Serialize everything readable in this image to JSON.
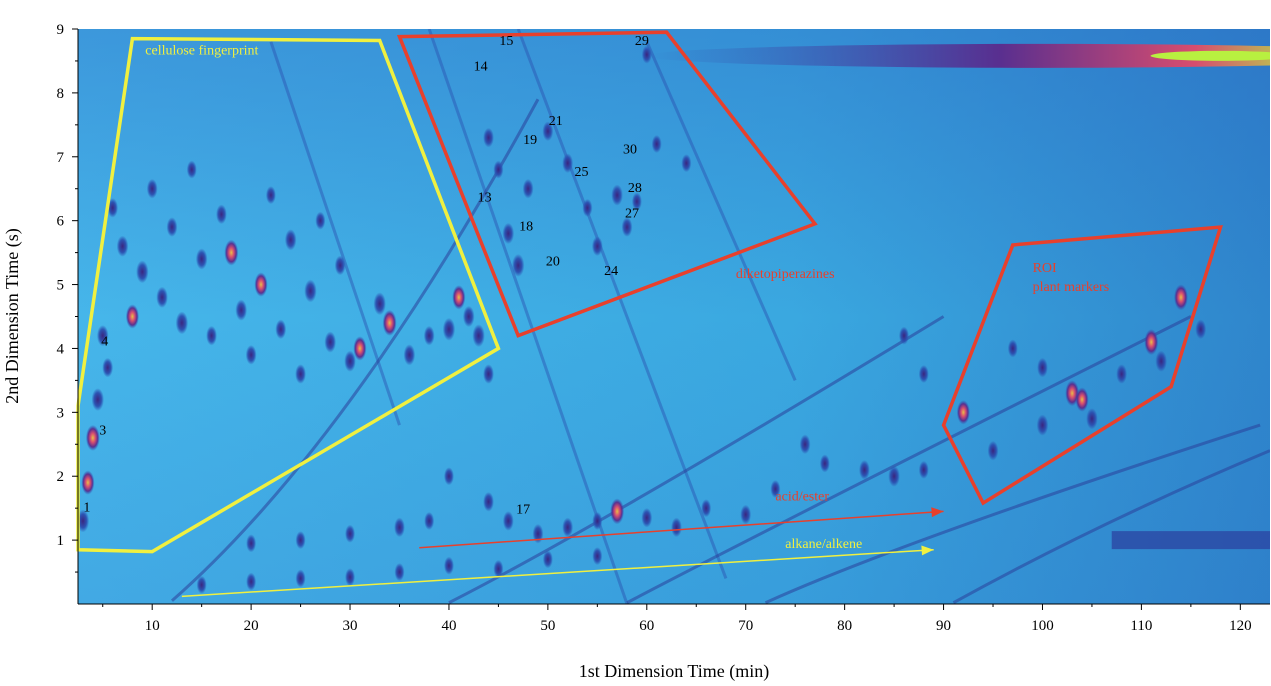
{
  "chart_data": {
    "type": "heatmap",
    "subtype": "GCxGC contour plot",
    "title": "",
    "xlabel": "1st Dimension Time (min)",
    "ylabel": "2nd Dimension Time (s)",
    "xlim": [
      2.5,
      123
    ],
    "ylim": [
      0,
      9
    ],
    "xticks": [
      10,
      20,
      30,
      40,
      50,
      60,
      70,
      80,
      90,
      100,
      110,
      120
    ],
    "yticks": [
      1,
      2,
      3,
      4,
      5,
      6,
      7,
      8,
      9
    ],
    "grid": false,
    "colors": {
      "background": "#3fb0e6",
      "band": "#5fc8f0",
      "low": "#2b4fb0",
      "mid": "#5b2a8c",
      "high": "#e04a6a",
      "peak": "#f0c040",
      "top": "#b8f040",
      "yellow_annotation": "#f0f040",
      "red_annotation": "#e8402c"
    },
    "regions": [
      {
        "label": "cellulose fingerprint",
        "color": "#f0f040",
        "points": [
          [
            2.5,
            0.85
          ],
          [
            10,
            0.82
          ],
          [
            45,
            4.0
          ],
          [
            33,
            8.82
          ],
          [
            8,
            8.85
          ],
          [
            2.5,
            3.1
          ]
        ]
      },
      {
        "label": "diketopiperazines",
        "color": "#e8402c",
        "points": [
          [
            35,
            8.88
          ],
          [
            62,
            8.95
          ],
          [
            77,
            5.95
          ],
          [
            47,
            4.2
          ]
        ]
      },
      {
        "label": "ROI\nplant markers",
        "color": "#e8402c",
        "points": [
          [
            97,
            5.62
          ],
          [
            118,
            5.9
          ],
          [
            113,
            3.4
          ],
          [
            94,
            1.58
          ],
          [
            90,
            2.8
          ]
        ]
      }
    ],
    "region_labels": [
      {
        "text": "cellulose fingerprint",
        "x": 9.3,
        "y": 8.6,
        "color": "#f0f040"
      },
      {
        "text": "diketopiperazines",
        "x": 69,
        "y": 5.1,
        "color": "#e8402c"
      },
      {
        "text": "ROI",
        "x": 99,
        "y": 5.2,
        "color": "#e8402c"
      },
      {
        "text": "plant markers",
        "x": 99,
        "y": 4.9,
        "color": "#e8402c"
      }
    ],
    "peak_labels": [
      {
        "text": "1",
        "x": 3.4,
        "y": 1.45
      },
      {
        "text": "3",
        "x": 5.0,
        "y": 2.65
      },
      {
        "text": "4",
        "x": 5.2,
        "y": 4.05
      },
      {
        "text": "13",
        "x": 43.6,
        "y": 6.3
      },
      {
        "text": "14",
        "x": 43.2,
        "y": 8.35
      },
      {
        "text": "15",
        "x": 45.8,
        "y": 8.75
      },
      {
        "text": "17",
        "x": 47.5,
        "y": 1.42
      },
      {
        "text": "18",
        "x": 47.8,
        "y": 5.85
      },
      {
        "text": "19",
        "x": 48.2,
        "y": 7.2
      },
      {
        "text": "20",
        "x": 50.5,
        "y": 5.3
      },
      {
        "text": "21",
        "x": 50.8,
        "y": 7.5
      },
      {
        "text": "24",
        "x": 56.4,
        "y": 5.15
      },
      {
        "text": "25",
        "x": 53.4,
        "y": 6.7
      },
      {
        "text": "27",
        "x": 58.5,
        "y": 6.05
      },
      {
        "text": "28",
        "x": 58.8,
        "y": 6.45
      },
      {
        "text": "29",
        "x": 59.5,
        "y": 8.75
      },
      {
        "text": "30",
        "x": 58.3,
        "y": 7.05
      }
    ],
    "trend_arrows": [
      {
        "label": "acid/ester",
        "color": "#e8402c",
        "from": [
          37,
          0.88
        ],
        "to": [
          90,
          1.45
        ],
        "label_x": 73,
        "label_y": 1.62
      },
      {
        "label": "alkane/alkene",
        "color": "#f0f040",
        "from": [
          13,
          0.12
        ],
        "to": [
          89,
          0.85
        ],
        "label_x": 74,
        "label_y": 0.88
      }
    ],
    "peaks": [
      [
        3,
        1.3,
        0.8
      ],
      [
        3.5,
        1.9,
        0.9
      ],
      [
        4,
        2.6,
        1.0
      ],
      [
        4.5,
        3.2,
        0.8
      ],
      [
        5,
        4.2,
        0.7
      ],
      [
        5.5,
        3.7,
        0.6
      ],
      [
        6,
        6.2,
        0.6
      ],
      [
        7,
        5.6,
        0.7
      ],
      [
        8,
        4.5,
        0.9
      ],
      [
        9,
        5.2,
        0.8
      ],
      [
        10,
        6.5,
        0.6
      ],
      [
        11,
        4.8,
        0.7
      ],
      [
        12,
        5.9,
        0.6
      ],
      [
        13,
        4.4,
        0.8
      ],
      [
        14,
        6.8,
        0.5
      ],
      [
        15,
        5.4,
        0.7
      ],
      [
        16,
        4.2,
        0.6
      ],
      [
        17,
        6.1,
        0.6
      ],
      [
        18,
        5.5,
        1.0
      ],
      [
        19,
        4.6,
        0.7
      ],
      [
        20,
        3.9,
        0.6
      ],
      [
        21,
        5.0,
        0.9
      ],
      [
        22,
        6.4,
        0.5
      ],
      [
        23,
        4.3,
        0.6
      ],
      [
        24,
        5.7,
        0.7
      ],
      [
        25,
        3.6,
        0.6
      ],
      [
        26,
        4.9,
        0.8
      ],
      [
        27,
        6.0,
        0.5
      ],
      [
        28,
        4.1,
        0.7
      ],
      [
        29,
        5.3,
        0.6
      ],
      [
        30,
        3.8,
        0.7
      ],
      [
        31,
        4.0,
        0.9
      ],
      [
        33,
        4.7,
        0.8
      ],
      [
        34,
        4.4,
        1.0
      ],
      [
        36,
        3.9,
        0.7
      ],
      [
        38,
        4.2,
        0.6
      ],
      [
        40,
        4.3,
        0.8
      ],
      [
        41,
        4.8,
        0.9
      ],
      [
        42,
        4.5,
        0.7
      ],
      [
        43,
        4.2,
        0.8
      ],
      [
        44,
        3.6,
        0.6
      ],
      [
        44,
        7.3,
        0.6
      ],
      [
        45,
        6.8,
        0.5
      ],
      [
        46,
        5.8,
        0.7
      ],
      [
        47,
        5.3,
        0.8
      ],
      [
        48,
        6.5,
        0.6
      ],
      [
        50,
        7.4,
        0.6
      ],
      [
        52,
        6.9,
        0.6
      ],
      [
        54,
        6.2,
        0.5
      ],
      [
        55,
        5.6,
        0.6
      ],
      [
        57,
        6.4,
        0.7
      ],
      [
        58,
        5.9,
        0.6
      ],
      [
        59,
        6.3,
        0.5
      ],
      [
        60,
        8.6,
        0.5
      ],
      [
        61,
        7.2,
        0.5
      ],
      [
        64,
        6.9,
        0.5
      ],
      [
        20,
        0.95,
        0.5
      ],
      [
        25,
        1.0,
        0.5
      ],
      [
        30,
        1.1,
        0.5
      ],
      [
        35,
        1.2,
        0.6
      ],
      [
        38,
        1.3,
        0.5
      ],
      [
        40,
        2.0,
        0.5
      ],
      [
        44,
        1.6,
        0.6
      ],
      [
        46,
        1.3,
        0.6
      ],
      [
        49,
        1.1,
        0.6
      ],
      [
        52,
        1.2,
        0.6
      ],
      [
        55,
        1.3,
        0.5
      ],
      [
        57,
        1.45,
        1.0
      ],
      [
        60,
        1.35,
        0.6
      ],
      [
        63,
        1.2,
        0.6
      ],
      [
        66,
        1.5,
        0.5
      ],
      [
        70,
        1.4,
        0.6
      ],
      [
        73,
        1.8,
        0.5
      ],
      [
        76,
        2.5,
        0.6
      ],
      [
        78,
        2.2,
        0.5
      ],
      [
        82,
        2.1,
        0.6
      ],
      [
        85,
        2.0,
        0.7
      ],
      [
        88,
        2.1,
        0.5
      ],
      [
        15,
        0.3,
        0.5
      ],
      [
        20,
        0.35,
        0.5
      ],
      [
        25,
        0.4,
        0.5
      ],
      [
        30,
        0.42,
        0.5
      ],
      [
        35,
        0.5,
        0.5
      ],
      [
        40,
        0.6,
        0.5
      ],
      [
        45,
        0.55,
        0.5
      ],
      [
        50,
        0.7,
        0.5
      ],
      [
        55,
        0.75,
        0.5
      ],
      [
        92,
        3.0,
        0.9
      ],
      [
        95,
        2.4,
        0.6
      ],
      [
        100,
        2.8,
        0.7
      ],
      [
        103,
        3.3,
        1.0
      ],
      [
        104,
        3.2,
        0.9
      ],
      [
        105,
        2.9,
        0.7
      ],
      [
        108,
        3.6,
        0.6
      ],
      [
        111,
        4.1,
        1.0
      ],
      [
        112,
        3.8,
        0.7
      ],
      [
        114,
        4.8,
        1.0
      ],
      [
        116,
        4.3,
        0.6
      ],
      [
        100,
        3.7,
        0.6
      ],
      [
        97,
        4.0,
        0.5
      ],
      [
        88,
        3.6,
        0.5
      ],
      [
        86,
        4.2,
        0.5
      ]
    ],
    "streaks": [
      [
        [
          38,
          9.0
        ],
        [
          58,
          0.0
        ]
      ],
      [
        [
          47,
          9.0
        ],
        [
          68,
          0.4
        ]
      ],
      [
        [
          60,
          8.8
        ],
        [
          75,
          3.5
        ]
      ],
      [
        [
          22,
          8.8
        ],
        [
          35,
          2.8
        ]
      ]
    ],
    "arcs": [
      {
        "from": [
          12,
          0.05
        ],
        "via": [
          30,
          2.5
        ],
        "to": [
          49,
          7.9
        ]
      },
      {
        "from": [
          40,
          0.02
        ],
        "via": [
          55,
          1.2
        ],
        "to": [
          90,
          4.5
        ]
      },
      {
        "from": [
          58,
          0.02
        ],
        "via": [
          70,
          1.0
        ],
        "to": [
          115,
          4.5
        ]
      },
      {
        "from": [
          72,
          0.02
        ],
        "via": [
          86,
          1.0
        ],
        "to": [
          122,
          2.8
        ]
      },
      {
        "from": [
          91,
          0.02
        ],
        "via": [
          106,
          1.3
        ],
        "to": [
          123,
          2.4
        ]
      }
    ],
    "top_band": {
      "x_from": 60,
      "x_to": 123,
      "y": 8.58
    },
    "bottom_band": {
      "x_from": 107,
      "x_to": 123,
      "y": 1.0
    }
  }
}
